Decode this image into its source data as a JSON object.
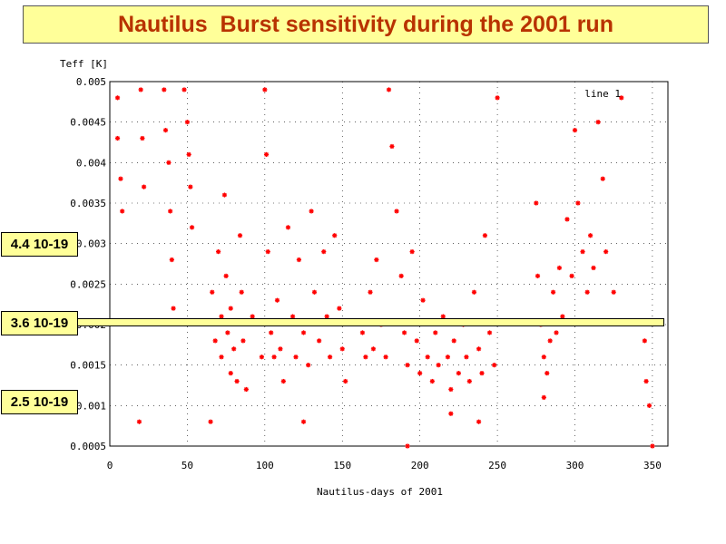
{
  "title": "Nautilus  Burst sensitivity during the 2001 run",
  "side_labels": [
    "4.4 10-19",
    "3.6 10-19",
    "2.5 10-19"
  ],
  "colors": {
    "points": "#ff0000",
    "title_text": "#b83200",
    "title_bg": "#ffff99"
  },
  "chart_data": {
    "type": "scatter",
    "ylabel": "Teff [K]",
    "xlabel": "Nautilus-days of 2001",
    "legend": "line 1",
    "legend_position": "top-right",
    "xlim": [
      0,
      360
    ],
    "ylim": [
      0.0005,
      0.005
    ],
    "xticks": [
      0,
      50,
      100,
      150,
      200,
      250,
      300,
      350
    ],
    "xtick_labels": [
      "0",
      "50",
      "100",
      "150",
      "200",
      "250",
      "300",
      "350"
    ],
    "yticks": [
      0.0005,
      0.001,
      0.0015,
      0.002,
      0.0025,
      0.003,
      0.0035,
      0.004,
      0.0045,
      0.005
    ],
    "ytick_labels": [
      "0.0005",
      "0.001",
      "0.0015",
      "0.002",
      "0.0025",
      "0.003",
      "0.0035",
      "0.004",
      "0.0045",
      "0.005"
    ],
    "grid": true,
    "highlight_band_y": 0.002,
    "series": [
      {
        "x": [
          5,
          5,
          7,
          8,
          20,
          21,
          22,
          35,
          36,
          38,
          39,
          40,
          41,
          48,
          50,
          51,
          52,
          53,
          66,
          68,
          70,
          72,
          72,
          74,
          75,
          76,
          78,
          78,
          80,
          82,
          84,
          85,
          86,
          88,
          92,
          98,
          100,
          101,
          102,
          104,
          106,
          108,
          110,
          112,
          115,
          118,
          120,
          122,
          125,
          128,
          130,
          132,
          135,
          138,
          140,
          142,
          145,
          148,
          150,
          152,
          163,
          165,
          168,
          170,
          172,
          175,
          178,
          180,
          182,
          185,
          188,
          190,
          192,
          195,
          198,
          200,
          202,
          205,
          208,
          210,
          212,
          215,
          218,
          220,
          222,
          225,
          228,
          230,
          232,
          235,
          238,
          240,
          242,
          245,
          248,
          250,
          275,
          276,
          278,
          280,
          280,
          282,
          284,
          286,
          288,
          290,
          292,
          295,
          298,
          300,
          302,
          305,
          308,
          310,
          312,
          315,
          318,
          320,
          325,
          330,
          345,
          346,
          348,
          350,
          19,
          65,
          125,
          192,
          220,
          238
        ],
        "y": [
          0.0048,
          0.0043,
          0.0038,
          0.0034,
          0.0049,
          0.0043,
          0.0037,
          0.0049,
          0.0044,
          0.004,
          0.0034,
          0.0028,
          0.0022,
          0.0049,
          0.0045,
          0.0041,
          0.0037,
          0.0032,
          0.0024,
          0.0018,
          0.0029,
          0.0021,
          0.0016,
          0.0036,
          0.0026,
          0.0019,
          0.0014,
          0.0022,
          0.0017,
          0.0013,
          0.0031,
          0.0024,
          0.0018,
          0.0012,
          0.0021,
          0.0016,
          0.0049,
          0.0041,
          0.0029,
          0.0019,
          0.0016,
          0.0023,
          0.0017,
          0.0013,
          0.0032,
          0.0021,
          0.0016,
          0.0028,
          0.0019,
          0.0015,
          0.0034,
          0.0024,
          0.0018,
          0.0029,
          0.0021,
          0.0016,
          0.0031,
          0.0022,
          0.0017,
          0.0013,
          0.0019,
          0.0016,
          0.0024,
          0.0017,
          0.0028,
          0.002,
          0.0016,
          0.0049,
          0.0042,
          0.0034,
          0.0026,
          0.0019,
          0.0015,
          0.0029,
          0.0018,
          0.0014,
          0.0023,
          0.0016,
          0.0013,
          0.0019,
          0.0015,
          0.0021,
          0.0016,
          0.0012,
          0.0018,
          0.0014,
          0.002,
          0.0016,
          0.0013,
          0.0024,
          0.0017,
          0.0014,
          0.0031,
          0.0019,
          0.0015,
          0.0048,
          0.0035,
          0.0026,
          0.002,
          0.0016,
          0.0011,
          0.0014,
          0.0018,
          0.0024,
          0.0019,
          0.0027,
          0.0021,
          0.0033,
          0.0026,
          0.0044,
          0.0035,
          0.0029,
          0.0024,
          0.0031,
          0.0027,
          0.0045,
          0.0038,
          0.0029,
          0.0024,
          0.0048,
          0.0018,
          0.0013,
          0.001,
          0.0005,
          0.0008,
          0.0008,
          0.0008,
          0.0005,
          0.0009,
          0.0008
        ]
      }
    ]
  }
}
